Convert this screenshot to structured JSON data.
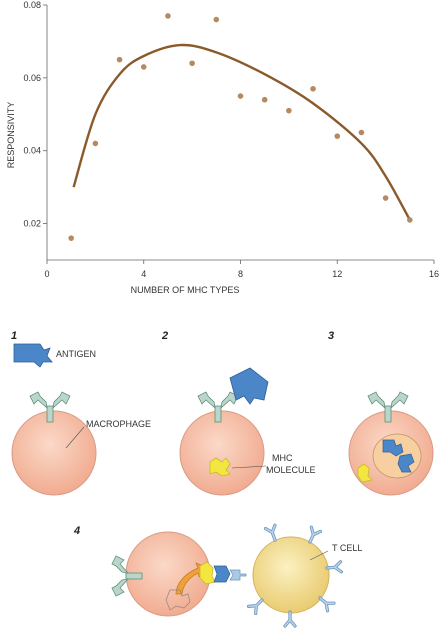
{
  "chart_data": {
    "type": "scatter",
    "xlabel": "NUMBER OF MHC TYPES",
    "ylabel": "RESPONSIVITY",
    "xlim": [
      0,
      16
    ],
    "ylim": [
      0.01,
      0.08
    ],
    "xticks": [
      "0",
      "4",
      "8",
      "12",
      "16"
    ],
    "yticks": [
      "0.02",
      "0.04",
      "0.06",
      "0.08"
    ],
    "points": [
      {
        "x": 1,
        "y": 0.016
      },
      {
        "x": 2,
        "y": 0.042
      },
      {
        "x": 3,
        "y": 0.065
      },
      {
        "x": 4,
        "y": 0.063
      },
      {
        "x": 5,
        "y": 0.077
      },
      {
        "x": 6,
        "y": 0.064
      },
      {
        "x": 7,
        "y": 0.076
      },
      {
        "x": 8,
        "y": 0.055
      },
      {
        "x": 9,
        "y": 0.054
      },
      {
        "x": 10,
        "y": 0.051
      },
      {
        "x": 11,
        "y": 0.057
      },
      {
        "x": 12,
        "y": 0.044
      },
      {
        "x": 13,
        "y": 0.045
      },
      {
        "x": 14,
        "y": 0.027
      },
      {
        "x": 15,
        "y": 0.021
      }
    ],
    "curve": [
      {
        "x": 1.1,
        "y": 0.03
      },
      {
        "x": 2,
        "y": 0.05
      },
      {
        "x": 3,
        "y": 0.061
      },
      {
        "x": 4,
        "y": 0.066
      },
      {
        "x": 5.5,
        "y": 0.069
      },
      {
        "x": 7,
        "y": 0.067
      },
      {
        "x": 9,
        "y": 0.061
      },
      {
        "x": 11,
        "y": 0.053
      },
      {
        "x": 13,
        "y": 0.042
      },
      {
        "x": 14,
        "y": 0.033
      },
      {
        "x": 15,
        "y": 0.021
      }
    ],
    "colors": {
      "points": "#b58a62",
      "curve": "#8a5a2b",
      "axis": "#555555"
    }
  },
  "diagram": {
    "panels": [
      "1",
      "2",
      "3",
      "4"
    ],
    "labels": {
      "antigen": "ANTIGEN",
      "macrophage": "MACROPHAGE",
      "mhc_line1": "MHC",
      "mhc_line2": "MOLECULE",
      "t_cell": "T CELL"
    },
    "colors": {
      "macrophage_fill": "#f3b9a0",
      "macrophage_stroke": "#d89a86",
      "tcell_fill": "#f2df9a",
      "tcell_stroke": "#d4b15a",
      "antigen": "#4a86c8",
      "receptor": "#b9d6c9",
      "receptor_stroke": "#5f8f7c",
      "mhc": "#f3e640",
      "arrow": "#f0a038",
      "tcell_receptor": "#a9c9e6"
    }
  }
}
